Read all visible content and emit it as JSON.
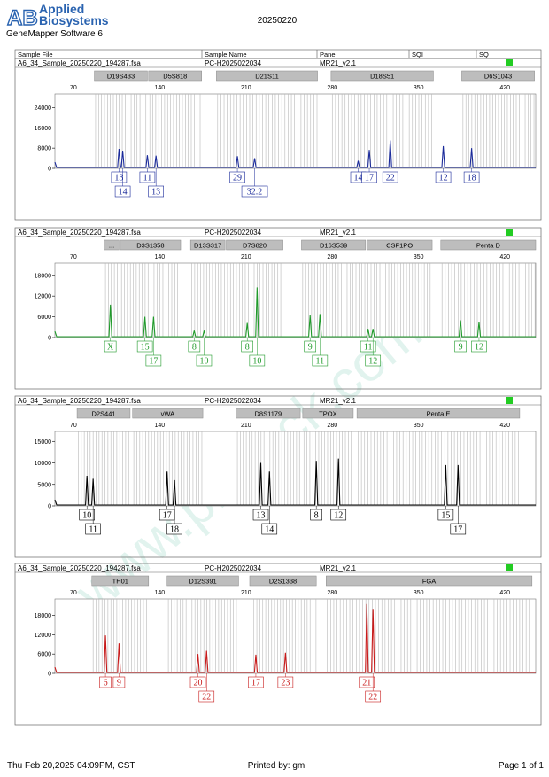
{
  "header": {
    "logo_mark": "AB",
    "brand_line1": "Applied",
    "brand_line2": "Biosystems",
    "software": "GeneMapper Software 6",
    "date": "20250220"
  },
  "table_header": {
    "sample_file": "Sample File",
    "sample_name": "Sample Name",
    "panel": "Panel",
    "sqi": "SQI",
    "sq": "SQ"
  },
  "watermark": "www.proteck.com.cn",
  "footer": {
    "timestamp": "Thu Feb 20,2025 04:09PM, CST",
    "printed_by": "Printed by: gm",
    "page": "Page 1 of 1"
  },
  "colors": {
    "blue": "#1a2a9a",
    "green": "#1f9a2a",
    "black": "#000000",
    "red": "#c81a1a",
    "status_ok": "#22cc22",
    "bin_fill": "#bdbdbd",
    "bin_line": "#b8b8b8"
  },
  "chart_data": [
    {
      "type": "line",
      "dye": "blue",
      "sample_file": "A6_34_Sample_20250220_194287.fsa",
      "sample_name": "PC-H2025022034",
      "panel": "MR21_v2.1",
      "x_ticks": [
        70,
        140,
        210,
        280,
        350,
        420
      ],
      "xlim": [
        55,
        445
      ],
      "y_ticks": [
        0,
        8000,
        16000,
        24000
      ],
      "ylim": [
        0,
        28000
      ],
      "markers": [
        {
          "label": "D19S433",
          "range": [
            87,
            130
          ]
        },
        {
          "label": "D5S818",
          "range": [
            131,
            174
          ]
        },
        {
          "label": "D21S11",
          "range": [
            186,
            268
          ]
        },
        {
          "label": "D18S51",
          "range": [
            279,
            362
          ]
        },
        {
          "label": "D6S1043",
          "range": [
            385,
            444
          ]
        }
      ],
      "peaks": [
        {
          "x": 107,
          "h": 7700,
          "label": "13",
          "row": 0
        },
        {
          "x": 110,
          "h": 7000,
          "label": "14",
          "row": 1
        },
        {
          "x": 130,
          "h": 5200,
          "label": "11",
          "row": 0
        },
        {
          "x": 137,
          "h": 5000,
          "label": "13",
          "row": 1
        },
        {
          "x": 203,
          "h": 4800,
          "label": "29",
          "row": 0
        },
        {
          "x": 217,
          "h": 4000,
          "label": "32.2",
          "row": 1
        },
        {
          "x": 301,
          "h": 3000,
          "label": "14",
          "row": 0
        },
        {
          "x": 310,
          "h": 7300,
          "label": "17",
          "row": 0
        },
        {
          "x": 327,
          "h": 11000,
          "label": "22",
          "row": 0
        },
        {
          "x": 370,
          "h": 8800,
          "label": "12",
          "row": 0
        },
        {
          "x": 393,
          "h": 8000,
          "label": "18",
          "row": 0
        }
      ]
    },
    {
      "type": "line",
      "dye": "green",
      "sample_file": "A6_34_Sample_20250220_194287.fsa",
      "sample_name": "PC-H2025022034",
      "panel": "MR21_v2.1",
      "x_ticks": [
        70,
        140,
        210,
        280,
        350,
        420
      ],
      "xlim": [
        55,
        445
      ],
      "y_ticks": [
        0,
        6000,
        12000,
        18000
      ],
      "ylim": [
        0,
        20500
      ],
      "markers": [
        {
          "label": "...",
          "range": [
            95,
            107
          ]
        },
        {
          "label": "D3S1358",
          "range": [
            108,
            157
          ]
        },
        {
          "label": "D13S317",
          "range": [
            165,
            193
          ]
        },
        {
          "label": "D7S820",
          "range": [
            194,
            240
          ]
        },
        {
          "label": "D16S539",
          "range": [
            255,
            307
          ]
        },
        {
          "label": "CSF1PO",
          "range": [
            308,
            361
          ]
        },
        {
          "label": "Penta D",
          "range": [
            368,
            445
          ]
        }
      ],
      "peaks": [
        {
          "x": 100,
          "h": 9500,
          "label": "X",
          "row": 0
        },
        {
          "x": 128,
          "h": 6000,
          "label": "15",
          "row": 0
        },
        {
          "x": 135,
          "h": 6000,
          "label": "17",
          "row": 1
        },
        {
          "x": 168,
          "h": 2000,
          "label": "8",
          "row": 0
        },
        {
          "x": 176,
          "h": 2000,
          "label": "10",
          "row": 1
        },
        {
          "x": 211,
          "h": 4200,
          "label": "8",
          "row": 0
        },
        {
          "x": 219,
          "h": 14500,
          "label": "10",
          "row": 1
        },
        {
          "x": 262,
          "h": 6500,
          "label": "9",
          "row": 0
        },
        {
          "x": 270,
          "h": 6800,
          "label": "11",
          "row": 1
        },
        {
          "x": 309,
          "h": 2500,
          "label": "11",
          "row": 0
        },
        {
          "x": 313,
          "h": 2500,
          "label": "12",
          "row": 1
        },
        {
          "x": 384,
          "h": 5000,
          "label": "9",
          "row": 0
        },
        {
          "x": 399,
          "h": 4500,
          "label": "12",
          "row": 0
        }
      ]
    },
    {
      "type": "line",
      "dye": "black",
      "sample_file": "A6_34_Sample_20250220_194287.fsa",
      "sample_name": "PC-H2025022034",
      "panel": "MR21_v2.1",
      "x_ticks": [
        70,
        140,
        210,
        280,
        350,
        420
      ],
      "xlim": [
        55,
        445
      ],
      "y_ticks": [
        0,
        5000,
        10000,
        15000
      ],
      "ylim": [
        0,
        16500
      ],
      "markers": [
        {
          "label": "D2S441",
          "range": [
            73,
            116
          ]
        },
        {
          "label": "vWA",
          "range": [
            118,
            175
          ]
        },
        {
          "label": "D8S1179",
          "range": [
            202,
            254
          ]
        },
        {
          "label": "TPOX",
          "range": [
            256,
            297
          ]
        },
        {
          "label": "Penta E",
          "range": [
            300,
            432
          ]
        }
      ],
      "peaks": [
        {
          "x": 81,
          "h": 7000,
          "label": "10",
          "row": 0
        },
        {
          "x": 86,
          "h": 6300,
          "label": "11",
          "row": 1
        },
        {
          "x": 146,
          "h": 8000,
          "label": "17",
          "row": 0
        },
        {
          "x": 152,
          "h": 6000,
          "label": "18",
          "row": 1
        },
        {
          "x": 222,
          "h": 10000,
          "label": "13",
          "row": 0
        },
        {
          "x": 229,
          "h": 8000,
          "label": "14",
          "row": 1
        },
        {
          "x": 267,
          "h": 10500,
          "label": "8",
          "row": 0
        },
        {
          "x": 285,
          "h": 11000,
          "label": "12",
          "row": 0
        },
        {
          "x": 372,
          "h": 9500,
          "label": "15",
          "row": 0
        },
        {
          "x": 382,
          "h": 9500,
          "label": "17",
          "row": 1
        }
      ]
    },
    {
      "type": "line",
      "dye": "red",
      "sample_file": "A6_34_Sample_20250220_194287.fsa",
      "sample_name": "PC-H2025022034",
      "panel": "MR21_v2.1",
      "x_ticks": [
        70,
        140,
        210,
        280,
        350,
        420
      ],
      "xlim": [
        55,
        445
      ],
      "y_ticks": [
        0,
        6000,
        12000,
        18000
      ],
      "ylim": [
        0,
        22000
      ],
      "markers": [
        {
          "label": "TH01",
          "range": [
            85,
            131
          ]
        },
        {
          "label": "D12S391",
          "range": [
            146,
            204
          ]
        },
        {
          "label": "D2S1338",
          "range": [
            213,
            267
          ]
        },
        {
          "label": "FGA",
          "range": [
            275,
            442
          ]
        }
      ],
      "peaks": [
        {
          "x": 96,
          "h": 11800,
          "label": "6",
          "row": 0
        },
        {
          "x": 107,
          "h": 9300,
          "label": "9",
          "row": 0
        },
        {
          "x": 171,
          "h": 6000,
          "label": "20",
          "row": 0
        },
        {
          "x": 178,
          "h": 7000,
          "label": "22",
          "row": 1
        },
        {
          "x": 218,
          "h": 5800,
          "label": "17",
          "row": 0
        },
        {
          "x": 242,
          "h": 6400,
          "label": "23",
          "row": 0
        },
        {
          "x": 308,
          "h": 21500,
          "label": "21",
          "row": 0
        },
        {
          "x": 313,
          "h": 20000,
          "label": "22",
          "row": 1
        }
      ]
    }
  ]
}
